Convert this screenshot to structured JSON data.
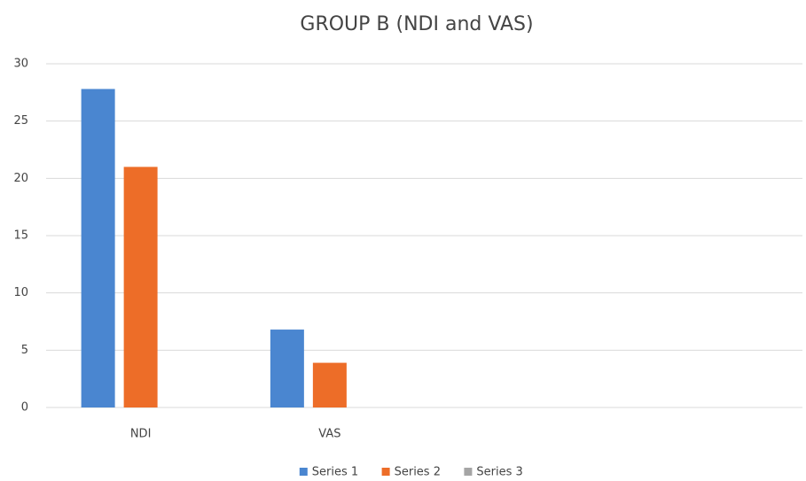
{
  "chart_data": {
    "type": "bar",
    "title": "GROUP B (NDI and VAS)",
    "categories": [
      "NDI",
      "VAS",
      null,
      null
    ],
    "series": [
      {
        "name": "Series 1",
        "color": "#4a86d0",
        "values": [
          27.8,
          6.8,
          null,
          null
        ]
      },
      {
        "name": "Series 2",
        "color": "#ed6d28",
        "values": [
          21.0,
          3.9,
          null,
          null
        ]
      },
      {
        "name": "Series 3",
        "color": "#a5a5a5",
        "values": [
          null,
          null,
          null,
          null
        ]
      }
    ],
    "ylim": [
      0,
      30
    ],
    "yticks": [
      0,
      5,
      10,
      15,
      20,
      25,
      30
    ],
    "grid": true,
    "legend": "bottom"
  }
}
